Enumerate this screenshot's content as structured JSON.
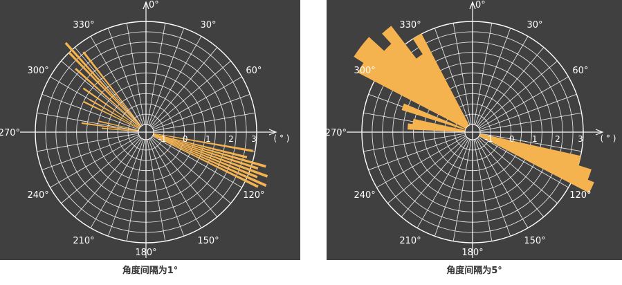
{
  "colors": {
    "background": "#404040",
    "grid": "#ffffff",
    "fill": "#f5b350",
    "text": "#ffffff",
    "caption": "#333333"
  },
  "chart_data": [
    {
      "type": "polar-area",
      "caption": "角度间隔为1°",
      "angle_tick_labels": [
        "0°",
        "30°",
        "60°",
        "120°",
        "150°",
        "180°",
        "210°",
        "240°",
        "270°",
        "300°",
        "330°"
      ],
      "radial_tick_labels": [
        "-1",
        "0",
        "1",
        "2",
        "3"
      ],
      "radial_unit_label": "( ° )",
      "radial_range": [
        -1.5,
        3
      ],
      "angle_step": 1,
      "grid": true,
      "sectors": [
        {
          "angle": 100,
          "value": 2.9
        },
        {
          "angle": 104,
          "value": 2.7
        },
        {
          "angle": 106,
          "value": 3.6
        },
        {
          "angle": 108,
          "value": 3.3
        },
        {
          "angle": 110,
          "value": 3.8
        },
        {
          "angle": 112,
          "value": 3.4
        },
        {
          "angle": 114,
          "value": 3.9
        },
        {
          "angle": 116,
          "value": 3.6
        },
        {
          "angle": 275,
          "value": 0.1
        },
        {
          "angle": 278,
          "value": 1.0
        },
        {
          "angle": 283,
          "value": 0.3
        },
        {
          "angle": 296,
          "value": 1.2
        },
        {
          "angle": 300,
          "value": 1.0
        },
        {
          "angle": 305,
          "value": 1.5
        },
        {
          "angle": 312,
          "value": 2.3
        },
        {
          "angle": 316,
          "value": 3.0
        },
        {
          "angle": 318,
          "value": 3.4
        },
        {
          "angle": 322,
          "value": 2.6
        }
      ]
    },
    {
      "type": "polar-area",
      "caption": "角度间隔为5°",
      "angle_tick_labels": [
        "0°",
        "30°",
        "60°",
        "120°",
        "150°",
        "180°",
        "210°",
        "240°",
        "270°",
        "300°",
        "330°"
      ],
      "radial_tick_labels": [
        "-1",
        "0",
        "1",
        "2",
        "3"
      ],
      "radial_unit_label": "( ° )",
      "radial_range": [
        -1.5,
        3
      ],
      "angle_step": 5,
      "grid": true,
      "sectors": [
        {
          "angle": 105,
          "value": 3.0
        },
        {
          "angle": 110,
          "value": 3.6
        },
        {
          "angle": 115,
          "value": 3.9
        },
        {
          "angle": 275,
          "value": 1.0
        },
        {
          "angle": 280,
          "value": 0.8
        },
        {
          "angle": 290,
          "value": 1.4
        },
        {
          "angle": 300,
          "value": 3.8
        },
        {
          "angle": 305,
          "value": 4.3
        },
        {
          "angle": 310,
          "value": 4.3
        },
        {
          "angle": 315,
          "value": 3.4
        },
        {
          "angle": 320,
          "value": 4.0
        },
        {
          "angle": 325,
          "value": 2.2
        },
        {
          "angle": 330,
          "value": 3.0
        }
      ]
    }
  ]
}
